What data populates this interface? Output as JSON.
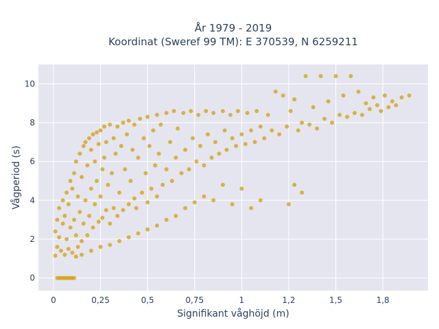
{
  "chart_data": {
    "type": "scatter",
    "title_lines": [
      "År 1979 - 2019",
      "Koordinat (Sweref 99 TM): E 370539, N 6259211"
    ],
    "xlabel": "Signifikant våghöjd (m)",
    "ylabel": "Vågperiod (s)",
    "xlim": [
      -0.08,
      1.99
    ],
    "ylim": [
      -0.65,
      11.0
    ],
    "x_ticks": [
      {
        "value": 0,
        "label": "0"
      },
      {
        "value": 0.25,
        "label": "0,25"
      },
      {
        "value": 0.5,
        "label": "0,5"
      },
      {
        "value": 0.75,
        "label": "0,75"
      },
      {
        "value": 1.0,
        "label": "1"
      },
      {
        "value": 1.25,
        "label": "1,2"
      },
      {
        "value": 1.5,
        "label": "1,5"
      },
      {
        "value": 1.75,
        "label": "1,8"
      }
    ],
    "y_ticks": [
      {
        "value": 0,
        "label": "0"
      },
      {
        "value": 2,
        "label": "2"
      },
      {
        "value": 4,
        "label": "4"
      },
      {
        "value": 6,
        "label": "6"
      },
      {
        "value": 8,
        "label": "8"
      },
      {
        "value": 10,
        "label": "10"
      }
    ],
    "grid": true,
    "marker_color": "#D4A41C",
    "plot_bg": "#E5E5EF",
    "series": [
      {
        "points": [
          [
            0.02,
            0
          ],
          [
            0.03,
            0
          ],
          [
            0.04,
            0
          ],
          [
            0.05,
            0
          ],
          [
            0.06,
            0
          ],
          [
            0.07,
            0
          ],
          [
            0.08,
            0
          ],
          [
            0.09,
            0
          ],
          [
            0.1,
            0
          ],
          [
            0.11,
            0
          ],
          [
            0.01,
            1.15
          ],
          [
            0.02,
            1.6
          ],
          [
            0.01,
            2.4
          ],
          [
            0.02,
            3.0
          ],
          [
            0.03,
            2.1
          ],
          [
            0.03,
            3.6
          ],
          [
            0.04,
            1.4
          ],
          [
            0.05,
            2.8
          ],
          [
            0.05,
            4.0
          ],
          [
            0.06,
            1.2
          ],
          [
            0.06,
            3.2
          ],
          [
            0.07,
            2.0
          ],
          [
            0.07,
            4.4
          ],
          [
            0.08,
            1.5
          ],
          [
            0.08,
            3.8
          ],
          [
            0.09,
            2.6
          ],
          [
            0.09,
            5.0
          ],
          [
            0.1,
            1.3
          ],
          [
            0.1,
            4.6
          ],
          [
            0.11,
            3.0
          ],
          [
            0.11,
            5.4
          ],
          [
            0.12,
            2.2
          ],
          [
            0.12,
            6.0
          ],
          [
            0.13,
            1.6
          ],
          [
            0.13,
            4.2
          ],
          [
            0.14,
            3.4
          ],
          [
            0.14,
            6.4
          ],
          [
            0.15,
            1.9
          ],
          [
            0.15,
            5.2
          ],
          [
            0.16,
            2.8
          ],
          [
            0.16,
            6.8
          ],
          [
            0.17,
            4.0
          ],
          [
            0.17,
            7.0
          ],
          [
            0.18,
            2.2
          ],
          [
            0.18,
            5.8
          ],
          [
            0.19,
            3.2
          ],
          [
            0.19,
            7.2
          ],
          [
            0.2,
            4.6
          ],
          [
            0.2,
            6.6
          ],
          [
            0.21,
            2.6
          ],
          [
            0.21,
            7.4
          ],
          [
            0.22,
            3.8
          ],
          [
            0.22,
            6.0
          ],
          [
            0.23,
            5.0
          ],
          [
            0.23,
            7.5
          ],
          [
            0.24,
            2.9
          ],
          [
            0.24,
            6.9
          ],
          [
            0.25,
            4.2
          ],
          [
            0.25,
            7.6
          ],
          [
            0.26,
            3.1
          ],
          [
            0.26,
            5.6
          ],
          [
            0.27,
            6.2
          ],
          [
            0.27,
            7.8
          ],
          [
            0.28,
            3.5
          ],
          [
            0.28,
            7.0
          ],
          [
            0.29,
            4.8
          ],
          [
            0.3,
            2.8
          ],
          [
            0.3,
            7.9
          ],
          [
            0.31,
            5.4
          ],
          [
            0.32,
            3.6
          ],
          [
            0.32,
            7.2
          ],
          [
            0.33,
            6.4
          ],
          [
            0.34,
            3.2
          ],
          [
            0.34,
            7.8
          ],
          [
            0.35,
            4.4
          ],
          [
            0.36,
            6.8
          ],
          [
            0.37,
            3.5
          ],
          [
            0.37,
            8.0
          ],
          [
            0.38,
            5.6
          ],
          [
            0.39,
            7.4
          ],
          [
            0.4,
            3.8
          ],
          [
            0.4,
            8.1
          ],
          [
            0.41,
            5.0
          ],
          [
            0.42,
            6.6
          ],
          [
            0.43,
            4.1
          ],
          [
            0.43,
            7.9
          ],
          [
            0.44,
            3.6
          ],
          [
            0.45,
            6.2
          ],
          [
            0.46,
            8.2
          ],
          [
            0.47,
            4.4
          ],
          [
            0.48,
            7.2
          ],
          [
            0.49,
            5.4
          ],
          [
            0.5,
            3.9
          ],
          [
            0.5,
            8.3
          ],
          [
            0.51,
            6.8
          ],
          [
            0.52,
            4.6
          ],
          [
            0.53,
            7.6
          ],
          [
            0.54,
            5.8
          ],
          [
            0.55,
            4.2
          ],
          [
            0.55,
            8.4
          ],
          [
            0.56,
            6.4
          ],
          [
            0.57,
            7.9
          ],
          [
            0.58,
            4.8
          ],
          [
            0.6,
            5.6
          ],
          [
            0.6,
            8.5
          ],
          [
            0.62,
            7.0
          ],
          [
            0.63,
            5.0
          ],
          [
            0.64,
            8.6
          ],
          [
            0.65,
            6.2
          ],
          [
            0.66,
            7.7
          ],
          [
            0.68,
            5.4
          ],
          [
            0.69,
            8.5
          ],
          [
            0.7,
            6.6
          ],
          [
            0.72,
            5.6
          ],
          [
            0.73,
            8.6
          ],
          [
            0.74,
            7.2
          ],
          [
            0.76,
            6.0
          ],
          [
            0.77,
            8.4
          ],
          [
            0.78,
            6.8
          ],
          [
            0.8,
            5.8
          ],
          [
            0.81,
            8.6
          ],
          [
            0.82,
            7.4
          ],
          [
            0.84,
            6.2
          ],
          [
            0.85,
            8.5
          ],
          [
            0.86,
            7.0
          ],
          [
            0.88,
            6.4
          ],
          [
            0.9,
            8.6
          ],
          [
            0.91,
            7.6
          ],
          [
            0.92,
            6.6
          ],
          [
            0.94,
            8.4
          ],
          [
            0.95,
            7.2
          ],
          [
            0.97,
            6.8
          ],
          [
            0.98,
            8.6
          ],
          [
            1.0,
            7.4
          ],
          [
            1.02,
            6.9
          ],
          [
            1.03,
            8.5
          ],
          [
            1.05,
            7.6
          ],
          [
            1.07,
            7.0
          ],
          [
            1.08,
            8.6
          ],
          [
            1.1,
            7.8
          ],
          [
            1.12,
            7.2
          ],
          [
            1.14,
            8.4
          ],
          [
            1.16,
            7.6
          ],
          [
            1.18,
            9.6
          ],
          [
            1.2,
            7.4
          ],
          [
            1.22,
            9.4
          ],
          [
            1.24,
            7.8
          ],
          [
            1.26,
            8.6
          ],
          [
            1.28,
            9.2
          ],
          [
            1.3,
            7.6
          ],
          [
            1.32,
            8.0
          ],
          [
            1.34,
            10.4
          ],
          [
            1.36,
            7.9
          ],
          [
            1.38,
            8.8
          ],
          [
            1.4,
            7.7
          ],
          [
            1.42,
            10.4
          ],
          [
            1.44,
            8.2
          ],
          [
            1.46,
            9.1
          ],
          [
            1.48,
            8.0
          ],
          [
            1.5,
            10.4
          ],
          [
            1.52,
            8.4
          ],
          [
            1.54,
            9.4
          ],
          [
            1.56,
            8.3
          ],
          [
            1.58,
            10.4
          ],
          [
            1.6,
            8.5
          ],
          [
            1.62,
            9.6
          ],
          [
            1.64,
            8.4
          ],
          [
            1.66,
            9.0
          ],
          [
            1.68,
            8.7
          ],
          [
            1.7,
            9.3
          ],
          [
            1.72,
            8.9
          ],
          [
            1.74,
            8.6
          ],
          [
            1.76,
            9.4
          ],
          [
            1.78,
            8.8
          ],
          [
            1.8,
            9.1
          ],
          [
            1.82,
            8.9
          ],
          [
            1.85,
            9.3
          ],
          [
            1.89,
            9.4
          ],
          [
            1.28,
            4.8
          ],
          [
            1.32,
            4.4
          ],
          [
            1.25,
            3.8
          ],
          [
            1.1,
            4.0
          ],
          [
            1.05,
            3.6
          ],
          [
            1.0,
            4.6
          ],
          [
            0.95,
            3.8
          ],
          [
            0.9,
            4.8
          ],
          [
            0.85,
            4.0
          ],
          [
            0.8,
            4.2
          ],
          [
            0.75,
            3.9
          ],
          [
            0.7,
            3.6
          ],
          [
            0.65,
            3.2
          ],
          [
            0.6,
            3.0
          ],
          [
            0.55,
            2.7
          ],
          [
            0.5,
            2.5
          ],
          [
            0.45,
            2.3
          ],
          [
            0.4,
            2.1
          ],
          [
            0.35,
            1.9
          ],
          [
            0.3,
            1.7
          ],
          [
            0.25,
            1.6
          ],
          [
            0.2,
            1.4
          ],
          [
            0.15,
            1.2
          ],
          [
            0.12,
            1.1
          ]
        ]
      }
    ]
  }
}
